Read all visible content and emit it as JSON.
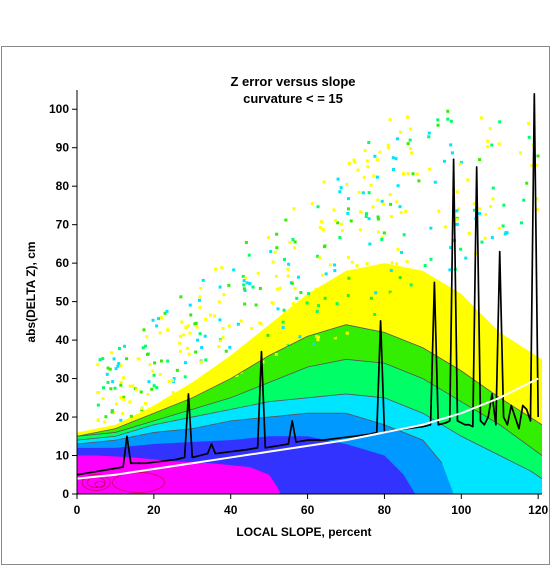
{
  "chart_data": {
    "type": "heatmap",
    "title": "Z error versus slope",
    "subtitle": "curvature < = 15",
    "xlabel": "LOCAL SLOPE, percent",
    "ylabel": "abs(DELTA Z), cm",
    "xlim": [
      0,
      121
    ],
    "ylim": [
      0,
      105
    ],
    "xticks": [
      0,
      20,
      40,
      60,
      80,
      100,
      120
    ],
    "yticks": [
      0,
      10,
      20,
      30,
      40,
      50,
      60,
      70,
      80,
      90,
      100
    ],
    "density_colors": [
      "#ff00ff",
      "#3333ff",
      "#0099ff",
      "#00e5ff",
      "#00ff66",
      "#33ee00",
      "#ffff00"
    ],
    "density_bands": [
      {
        "level": 1,
        "color": "#ff00ff",
        "upper": [
          [
            0,
            10
          ],
          [
            5,
            10
          ],
          [
            15,
            9.5
          ],
          [
            25,
            8.5
          ],
          [
            35,
            8
          ],
          [
            45,
            7
          ],
          [
            50,
            5
          ],
          [
            52,
            2
          ],
          [
            53,
            0
          ]
        ]
      },
      {
        "level": 2,
        "color": "#3333ff",
        "upper": [
          [
            0,
            12
          ],
          [
            10,
            12
          ],
          [
            20,
            13
          ],
          [
            30,
            13.5
          ],
          [
            40,
            14
          ],
          [
            50,
            15
          ],
          [
            60,
            15
          ],
          [
            70,
            13
          ],
          [
            80,
            10
          ],
          [
            85,
            5
          ],
          [
            88,
            0
          ]
        ]
      },
      {
        "level": 3,
        "color": "#0099ff",
        "upper": [
          [
            0,
            13
          ],
          [
            10,
            14
          ],
          [
            20,
            16
          ],
          [
            30,
            17
          ],
          [
            40,
            19
          ],
          [
            50,
            20
          ],
          [
            60,
            21
          ],
          [
            70,
            21
          ],
          [
            80,
            18
          ],
          [
            90,
            14
          ],
          [
            95,
            8
          ],
          [
            98,
            0
          ]
        ]
      },
      {
        "level": 4,
        "color": "#00e5ff",
        "upper": [
          [
            0,
            14
          ],
          [
            10,
            15
          ],
          [
            20,
            18
          ],
          [
            30,
            20
          ],
          [
            40,
            22
          ],
          [
            50,
            24
          ],
          [
            60,
            25
          ],
          [
            70,
            26
          ],
          [
            80,
            25
          ],
          [
            90,
            21
          ],
          [
            100,
            15
          ],
          [
            110,
            10
          ],
          [
            118,
            6
          ],
          [
            121,
            4
          ],
          [
            121,
            0
          ]
        ]
      },
      {
        "level": 5,
        "color": "#00ff66",
        "upper": [
          [
            0,
            15
          ],
          [
            10,
            16
          ],
          [
            20,
            19
          ],
          [
            30,
            22
          ],
          [
            40,
            25
          ],
          [
            50,
            29
          ],
          [
            60,
            33
          ],
          [
            70,
            35
          ],
          [
            80,
            34
          ],
          [
            90,
            30
          ],
          [
            100,
            24
          ],
          [
            110,
            18
          ],
          [
            121,
            10
          ],
          [
            121,
            0
          ]
        ]
      },
      {
        "level": 6,
        "color": "#33ee00",
        "upper": [
          [
            0,
            15
          ],
          [
            10,
            17
          ],
          [
            20,
            21
          ],
          [
            30,
            25
          ],
          [
            40,
            30
          ],
          [
            50,
            36
          ],
          [
            60,
            41
          ],
          [
            70,
            44
          ],
          [
            80,
            42
          ],
          [
            90,
            38
          ],
          [
            100,
            32
          ],
          [
            110,
            25
          ],
          [
            121,
            18
          ],
          [
            121,
            0
          ]
        ]
      },
      {
        "level": 7,
        "color": "#ffff00",
        "upper": [
          [
            0,
            16
          ],
          [
            10,
            18
          ],
          [
            20,
            23
          ],
          [
            30,
            29
          ],
          [
            40,
            36
          ],
          [
            50,
            44
          ],
          [
            60,
            52
          ],
          [
            70,
            58
          ],
          [
            80,
            60
          ],
          [
            90,
            58
          ],
          [
            100,
            52
          ],
          [
            110,
            42
          ],
          [
            121,
            35
          ],
          [
            121,
            0
          ]
        ]
      }
    ],
    "series": [
      {
        "style": "black-line",
        "x": [
          0,
          3,
          6,
          9,
          12,
          13,
          14,
          18,
          22,
          26,
          28,
          29,
          30,
          32,
          34,
          35,
          36,
          40,
          44,
          47,
          48,
          49,
          52,
          55,
          56,
          57,
          60,
          64,
          68,
          72,
          76,
          78,
          79,
          80,
          82,
          86,
          90,
          92,
          93,
          94,
          96,
          97,
          98,
          99,
          101,
          102,
          103,
          104,
          105,
          106,
          107,
          108,
          109,
          110,
          111,
          112,
          113,
          114,
          115,
          116,
          117,
          118,
          119,
          120
        ],
        "y": [
          5,
          5.5,
          6,
          6.5,
          7,
          15,
          8,
          8,
          8.5,
          9,
          9.5,
          26,
          9.5,
          10,
          10.5,
          13,
          10.5,
          11,
          11.5,
          12,
          37,
          12,
          12.5,
          13,
          19,
          13.5,
          14,
          14,
          14.5,
          15,
          15.5,
          16,
          45,
          16,
          16.5,
          17,
          17.5,
          18,
          55,
          18,
          18.5,
          19,
          87,
          19,
          18,
          18,
          17.5,
          85,
          19,
          18,
          20,
          26,
          18,
          63,
          20,
          18,
          23,
          20,
          17,
          23,
          22,
          19,
          104,
          20
        ]
      },
      {
        "style": "white-line",
        "x": [
          0,
          10,
          20,
          30,
          40,
          50,
          60,
          70,
          80,
          90,
          100,
          110,
          120
        ],
        "y": [
          4,
          5,
          6.5,
          8,
          9.5,
          11,
          12.5,
          14,
          16,
          18,
          21,
          25,
          30
        ]
      }
    ]
  }
}
